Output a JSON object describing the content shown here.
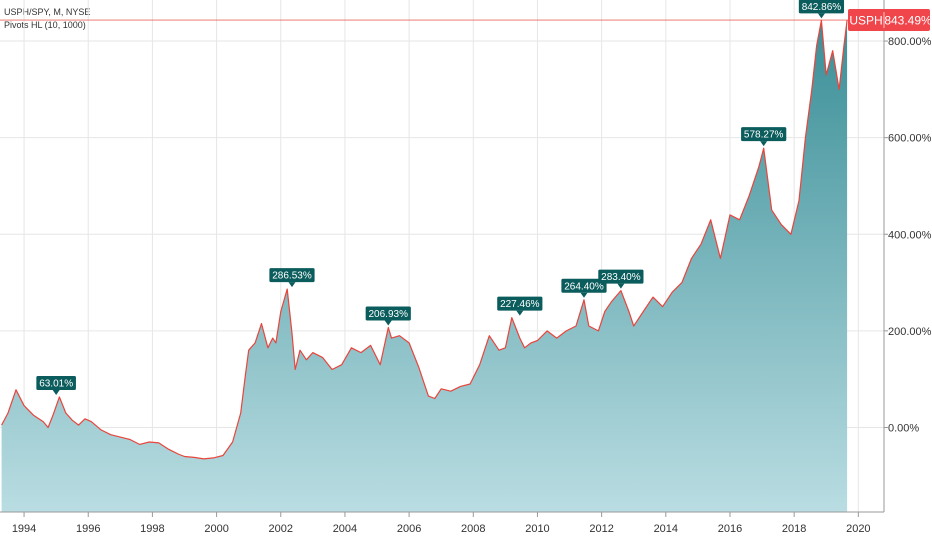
{
  "legend": {
    "symbol_line": "USPH/SPY, M, NYSE",
    "indicator_line": "Pivots HL (10, 1000)"
  },
  "colors": {
    "line": "#e8453c",
    "area_top": "#3a8e97",
    "area_bottom": "#b9dde2",
    "pivot_bg": "#0b5c5c",
    "badge_bg": "#f0454b",
    "grid": "#e6e6e6"
  },
  "chart_data": {
    "type": "area",
    "title": "",
    "xlabel": "",
    "ylabel": "",
    "x_ticks": [
      "1994",
      "1996",
      "1998",
      "2000",
      "2002",
      "2004",
      "2006",
      "2008",
      "2010",
      "2012",
      "2014",
      "2016",
      "2018",
      "2020"
    ],
    "y_ticks": [
      "0.00%",
      "200.00%",
      "400.00%",
      "600.00%",
      "800.00%"
    ],
    "xlim": [
      1993.25,
      2020.8
    ],
    "ylim": [
      -175,
      885
    ],
    "grid": true,
    "series": [
      {
        "x": [
          1993.3,
          1993.5,
          1993.75,
          1994.0,
          1994.3,
          1994.6,
          1994.75,
          1994.9,
          1995.1,
          1995.3,
          1995.5,
          1995.7,
          1995.9,
          1996.1,
          1996.4,
          1996.7,
          1997.0,
          1997.3,
          1997.6,
          1997.9,
          1998.2,
          1998.5,
          1998.8,
          1999.0,
          1999.3,
          1999.6,
          1999.9,
          2000.2,
          2000.5,
          2000.75,
          2000.9,
          2001.0,
          2001.2,
          2001.4,
          2001.6,
          2001.75,
          2001.85,
          2002.0,
          2002.2,
          2002.35,
          2002.45,
          2002.6,
          2002.8,
          2003.0,
          2003.3,
          2003.6,
          2003.9,
          2004.2,
          2004.5,
          2004.8,
          2005.1,
          2005.35,
          2005.45,
          2005.7,
          2006.0,
          2006.3,
          2006.6,
          2006.8,
          2007.0,
          2007.3,
          2007.6,
          2007.9,
          2008.2,
          2008.5,
          2008.8,
          2009.0,
          2009.2,
          2009.45,
          2009.6,
          2009.8,
          2010.0,
          2010.3,
          2010.6,
          2010.9,
          2011.2,
          2011.45,
          2011.6,
          2011.9,
          2012.1,
          2012.3,
          2012.6,
          2012.85,
          2013.0,
          2013.3,
          2013.6,
          2013.9,
          2014.2,
          2014.5,
          2014.8,
          2015.1,
          2015.4,
          2015.7,
          2016.0,
          2016.3,
          2016.6,
          2016.9,
          2017.05,
          2017.3,
          2017.6,
          2017.9,
          2018.15,
          2018.35,
          2018.55,
          2018.7,
          2018.85,
          2019.0,
          2019.2,
          2019.4,
          2019.55,
          2019.65
        ],
        "values": [
          5,
          30,
          78,
          45,
          25,
          12,
          0,
          25,
          63,
          30,
          15,
          5,
          18,
          12,
          -5,
          -15,
          -20,
          -25,
          -35,
          -30,
          -32,
          -45,
          -55,
          -60,
          -62,
          -65,
          -63,
          -58,
          -30,
          30,
          110,
          160,
          175,
          215,
          165,
          185,
          175,
          240,
          286.53,
          195,
          120,
          160,
          140,
          155,
          145,
          120,
          130,
          165,
          155,
          170,
          130,
          206.93,
          185,
          190,
          175,
          125,
          65,
          60,
          80,
          75,
          85,
          90,
          130,
          190,
          160,
          165,
          227.46,
          185,
          165,
          175,
          180,
          200,
          185,
          200,
          210,
          264.4,
          210,
          200,
          240,
          260,
          283.4,
          240,
          210,
          240,
          270,
          250,
          280,
          300,
          350,
          380,
          430,
          350,
          440,
          430,
          480,
          540,
          578.27,
          450,
          420,
          400,
          470,
          600,
          700,
          790,
          842.86,
          730,
          780,
          700,
          790,
          843.49
        ]
      }
    ],
    "pivot_labels": [
      {
        "x": 1995.0,
        "y": 63.01,
        "text": "63.01%"
      },
      {
        "x": 2002.35,
        "y": 286.53,
        "text": "286.53%"
      },
      {
        "x": 2005.35,
        "y": 206.93,
        "text": "206.93%"
      },
      {
        "x": 2009.45,
        "y": 227.46,
        "text": "227.46%"
      },
      {
        "x": 2011.45,
        "y": 264.4,
        "text": "264.40%"
      },
      {
        "x": 2012.6,
        "y": 283.4,
        "text": "283.40%"
      },
      {
        "x": 2017.05,
        "y": 578.27,
        "text": "578.27%"
      },
      {
        "x": 2018.85,
        "y": 842.86,
        "text": "842.86%"
      }
    ],
    "last_value": {
      "symbol": "USPH",
      "value": 843.49,
      "text": "843.49%"
    }
  }
}
